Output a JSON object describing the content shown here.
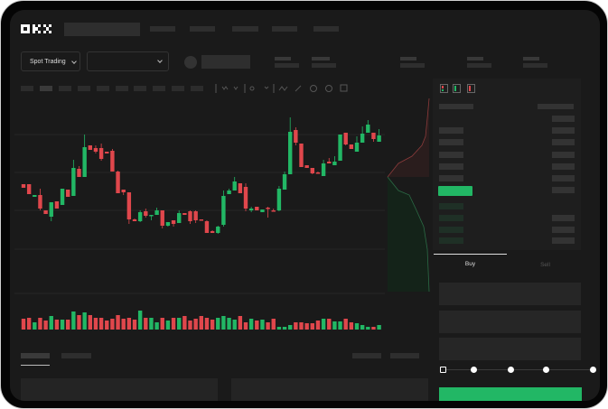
{
  "header": {
    "logo": "OKX"
  },
  "market": {
    "mode_label": "Spot Trading"
  },
  "trade": {
    "tabs": [
      {
        "label": "Buy",
        "active": true
      },
      {
        "label": "Sell",
        "active": false
      }
    ],
    "slider_percent": 0
  },
  "colors": {
    "up": "#22b765",
    "down": "#e0474c",
    "accent": "#22b765",
    "background": "#1a1a1a"
  },
  "chart_data": {
    "type": "candlestick",
    "candles": [
      [
        97,
        93,
        97,
        93
      ],
      [
        97,
        86,
        97,
        86
      ],
      [
        83,
        85,
        85,
        83
      ],
      [
        85,
        70,
        92,
        68
      ],
      [
        68,
        64,
        68,
        64
      ],
      [
        61,
        77,
        77,
        56
      ],
      [
        78,
        70,
        78,
        70
      ],
      [
        74,
        92,
        92,
        74
      ],
      [
        91,
        83,
        91,
        83
      ],
      [
        84,
        115,
        124,
        84
      ],
      [
        114,
        105,
        117,
        105
      ],
      [
        105,
        138,
        152,
        105
      ],
      [
        140,
        135,
        140,
        135
      ],
      [
        137,
        133,
        140,
        131
      ],
      [
        137,
        125,
        142,
        123
      ],
      [
        133,
        131,
        133,
        131
      ],
      [
        134,
        111,
        136,
        111
      ],
      [
        111,
        87,
        112,
        87
      ],
      [
        91,
        88,
        91,
        85
      ],
      [
        88,
        58,
        88,
        53
      ],
      [
        58,
        56,
        59,
        56
      ],
      [
        56,
        66,
        68,
        55
      ],
      [
        67,
        62,
        70,
        60
      ],
      [
        62,
        63,
        63,
        57
      ],
      [
        63,
        68,
        71,
        63
      ],
      [
        68,
        51,
        68,
        48
      ],
      [
        51,
        55,
        55,
        50
      ],
      [
        57,
        53,
        57,
        50
      ],
      [
        54,
        65,
        68,
        54
      ],
      [
        65,
        63,
        65,
        63
      ],
      [
        67,
        56,
        68,
        53
      ],
      [
        67,
        57,
        68,
        54
      ],
      [
        58,
        57,
        58,
        57
      ],
      [
        56,
        43,
        57,
        43
      ],
      [
        45,
        43,
        46,
        43
      ],
      [
        43,
        50,
        51,
        42
      ],
      [
        52,
        84,
        90,
        50
      ],
      [
        86,
        90,
        92,
        86
      ],
      [
        90,
        100,
        105,
        90
      ],
      [
        98,
        87,
        98,
        87
      ],
      [
        94,
        70,
        98,
        67
      ],
      [
        68,
        70,
        72,
        66
      ],
      [
        72,
        68,
        72,
        68
      ],
      [
        66,
        69,
        69,
        66
      ],
      [
        71,
        70,
        72,
        60
      ],
      [
        68,
        67,
        70,
        67
      ],
      [
        68,
        92,
        95,
        67
      ],
      [
        91,
        108,
        111,
        91
      ],
      [
        108,
        155,
        171,
        108
      ],
      [
        157,
        143,
        160,
        140
      ],
      [
        142,
        116,
        142,
        116
      ],
      [
        118,
        115,
        118,
        115
      ],
      [
        115,
        109,
        115,
        108
      ],
      [
        110,
        109,
        111,
        109
      ],
      [
        106,
        120,
        124,
        106
      ],
      [
        122,
        120,
        126,
        120
      ],
      [
        118,
        122,
        128,
        118
      ],
      [
        123,
        152,
        152,
        123
      ],
      [
        154,
        141,
        154,
        140
      ],
      [
        141,
        136,
        141,
        136
      ],
      [
        133,
        143,
        150,
        133
      ],
      [
        143,
        153,
        161,
        143
      ],
      [
        154,
        163,
        168,
        154
      ],
      [
        154,
        147,
        154,
        144
      ],
      [
        144,
        151,
        158,
        144
      ]
    ],
    "volumes": [
      12,
      13,
      8,
      13,
      10,
      15,
      11,
      11,
      11,
      20,
      16,
      19,
      16,
      13,
      13,
      10,
      12,
      16,
      12,
      13,
      11,
      21,
      13,
      13,
      8,
      13,
      10,
      13,
      13,
      15,
      10,
      12,
      15,
      13,
      11,
      13,
      15,
      13,
      11,
      15,
      8,
      12,
      10,
      11,
      8,
      12,
      3,
      3,
      5,
      8,
      8,
      7,
      7,
      10,
      12,
      12,
      9,
      9,
      12,
      8,
      7,
      5,
      3,
      3,
      5
    ]
  }
}
